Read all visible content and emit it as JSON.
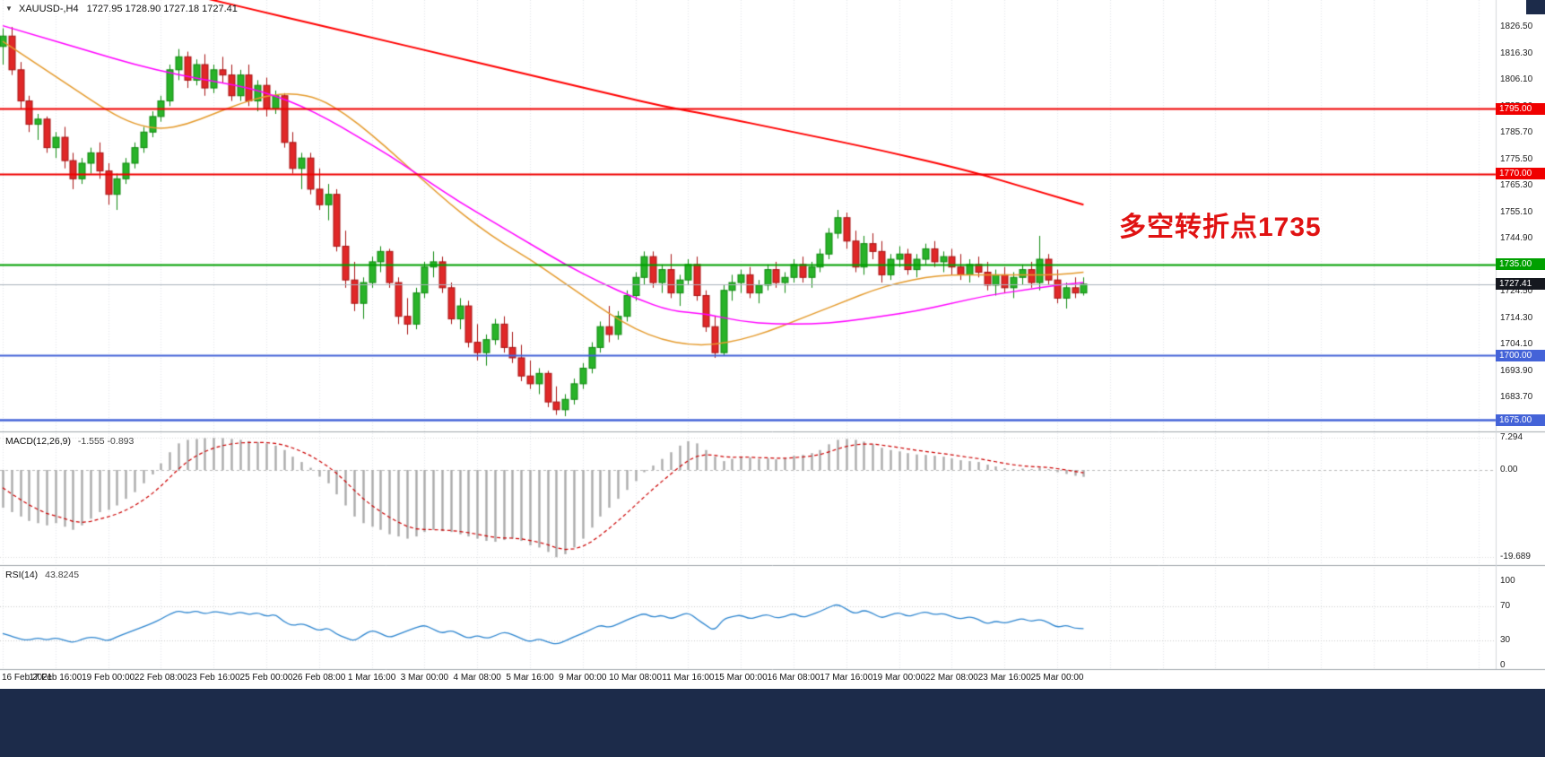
{
  "info_line": {
    "symbol_period": "XAUUSD-,H4",
    "ohlc_values": "1727.95 1728.90 1727.18 1727.41"
  },
  "annotation": {
    "text": "多空转折点1735"
  },
  "colors": {
    "bull": "#29b329",
    "bull_border": "#0f8a0f",
    "bear": "#e02828",
    "bear_border": "#a81414",
    "ma_fast": "#e59b2d",
    "ma_mid": "#ff00ff",
    "ma_slow": "#ff0000",
    "grid": "#e4e7ea",
    "level_red": "#f00000",
    "level_green": "#00a000",
    "level_blue": "#4463d8",
    "current_price_line": "#aab2bc",
    "current_price_box": "#15181f",
    "macd_hist": "#ababab",
    "macd_signal": "#cc0000",
    "rsi_line": "#2e86d0",
    "separator": "#a0a6ac",
    "annotation_red": "#e01212",
    "page_bg": "#1c2b4a"
  },
  "chart_data": {
    "type": "candlestick",
    "symbol": "XAUUSD-",
    "timeframe": "H4",
    "ohlc_display": {
      "open": "1727.95",
      "high": "1728.90",
      "low": "1727.18",
      "close": "1727.41"
    },
    "price_ticks": [
      "1826.50",
      "1816.30",
      "1806.10",
      "1795.90",
      "1785.70",
      "1775.50",
      "1765.30",
      "1755.10",
      "1744.90",
      "1734.70",
      "1724.50",
      "1714.30",
      "1704.10",
      "1693.90",
      "1683.70",
      "1673.50"
    ],
    "levels": [
      {
        "label": "1795.00",
        "value": 1795.0,
        "color_key": "level_red"
      },
      {
        "label": "1770.00",
        "value": 1770.0,
        "color_key": "level_red"
      },
      {
        "label": "1735.00",
        "value": 1735.0,
        "color_key": "level_green"
      },
      {
        "label": "1700.00",
        "value": 1700.0,
        "color_key": "level_blue"
      },
      {
        "label": "1675.00",
        "value": 1675.0,
        "color_key": "level_blue"
      }
    ],
    "current_price": {
      "label": "1727.41",
      "value": 1727.41
    },
    "time_labels": [
      "16 Feb 2021",
      "17 Feb 16:00",
      "19 Feb 00:00",
      "22 Feb 08:00",
      "23 Feb 16:00",
      "25 Feb 00:00",
      "26 Feb 08:00",
      "1 Mar 16:00",
      "3 Mar 00:00",
      "4 Mar 08:00",
      "5 Mar 16:00",
      "9 Mar 00:00",
      "10 Mar 08:00",
      "11 Mar 16:00",
      "15 Mar 00:00",
      "16 Mar 08:00",
      "17 Mar 16:00",
      "19 Mar 00:00",
      "22 Mar 08:00",
      "23 Mar 16:00",
      "25 Mar 00:00"
    ],
    "candles": [
      [
        1819,
        1826,
        1812,
        1823
      ],
      [
        1823,
        1826.5,
        1808,
        1810
      ],
      [
        1810,
        1813,
        1795,
        1798
      ],
      [
        1798,
        1800,
        1786,
        1789
      ],
      [
        1789,
        1793,
        1783,
        1791
      ],
      [
        1791,
        1792,
        1778,
        1780
      ],
      [
        1780,
        1786,
        1776,
        1784
      ],
      [
        1784,
        1788,
        1772,
        1775
      ],
      [
        1775,
        1778,
        1764,
        1768
      ],
      [
        1768,
        1776,
        1766,
        1774
      ],
      [
        1774,
        1780,
        1770,
        1778
      ],
      [
        1778,
        1782,
        1768,
        1771
      ],
      [
        1771,
        1774,
        1758,
        1762
      ],
      [
        1762,
        1770,
        1756,
        1768
      ],
      [
        1768,
        1776,
        1766,
        1774
      ],
      [
        1774,
        1782,
        1772,
        1780
      ],
      [
        1780,
        1788,
        1778,
        1786
      ],
      [
        1786,
        1794,
        1784,
        1792
      ],
      [
        1792,
        1800,
        1790,
        1798
      ],
      [
        1798,
        1812,
        1796,
        1810
      ],
      [
        1810,
        1818,
        1806,
        1815
      ],
      [
        1815,
        1817,
        1803,
        1806
      ],
      [
        1806,
        1814,
        1804,
        1812
      ],
      [
        1812,
        1816,
        1800,
        1803
      ],
      [
        1803,
        1812,
        1801,
        1810
      ],
      [
        1810,
        1815,
        1805,
        1808
      ],
      [
        1808,
        1812,
        1798,
        1800
      ],
      [
        1800,
        1810,
        1798,
        1808
      ],
      [
        1808,
        1812,
        1796,
        1798
      ],
      [
        1798,
        1806,
        1794,
        1804
      ],
      [
        1804,
        1807,
        1792,
        1795
      ],
      [
        1795,
        1802,
        1793,
        1800
      ],
      [
        1800,
        1801,
        1780,
        1782
      ],
      [
        1782,
        1786,
        1770,
        1772
      ],
      [
        1772,
        1778,
        1764,
        1776
      ],
      [
        1776,
        1778,
        1762,
        1764
      ],
      [
        1764,
        1772,
        1756,
        1758
      ],
      [
        1758,
        1766,
        1752,
        1762
      ],
      [
        1762,
        1764,
        1740,
        1742
      ],
      [
        1742,
        1748,
        1726,
        1729
      ],
      [
        1729,
        1736,
        1717,
        1720
      ],
      [
        1720,
        1730,
        1714,
        1728
      ],
      [
        1728,
        1738,
        1726,
        1736
      ],
      [
        1736,
        1742,
        1732,
        1740
      ],
      [
        1740,
        1741,
        1726,
        1728
      ],
      [
        1728,
        1730,
        1712,
        1715
      ],
      [
        1715,
        1722,
        1708,
        1712
      ],
      [
        1712,
        1726,
        1710,
        1724
      ],
      [
        1724,
        1736,
        1722,
        1734
      ],
      [
        1734,
        1740,
        1730,
        1736
      ],
      [
        1736,
        1738,
        1724,
        1726
      ],
      [
        1726,
        1728,
        1712,
        1714
      ],
      [
        1714,
        1722,
        1710,
        1719
      ],
      [
        1719,
        1721,
        1703,
        1705
      ],
      [
        1705,
        1712,
        1698,
        1701
      ],
      [
        1701,
        1708,
        1696,
        1706
      ],
      [
        1706,
        1714,
        1704,
        1712
      ],
      [
        1712,
        1715,
        1701,
        1703
      ],
      [
        1703,
        1709,
        1697,
        1699
      ],
      [
        1699,
        1704,
        1690,
        1692
      ],
      [
        1692,
        1698,
        1687,
        1689
      ],
      [
        1689,
        1695,
        1685,
        1693
      ],
      [
        1693,
        1694,
        1680,
        1682
      ],
      [
        1682,
        1688,
        1677,
        1679
      ],
      [
        1679,
        1685,
        1676.5,
        1683
      ],
      [
        1683,
        1691,
        1681,
        1689
      ],
      [
        1689,
        1697,
        1687,
        1695
      ],
      [
        1695,
        1705,
        1693,
        1703
      ],
      [
        1703,
        1713,
        1701,
        1711
      ],
      [
        1711,
        1719,
        1705,
        1708
      ],
      [
        1708,
        1717,
        1706,
        1715
      ],
      [
        1715,
        1725,
        1713,
        1723
      ],
      [
        1723,
        1732,
        1721,
        1730
      ],
      [
        1730,
        1740,
        1727,
        1738
      ],
      [
        1738,
        1740,
        1726,
        1728
      ],
      [
        1728,
        1735,
        1724,
        1733
      ],
      [
        1733,
        1739,
        1722,
        1724
      ],
      [
        1724,
        1731,
        1719,
        1729
      ],
      [
        1729,
        1737,
        1727,
        1735
      ],
      [
        1735,
        1738,
        1721,
        1723
      ],
      [
        1723,
        1725,
        1709,
        1711
      ],
      [
        1711,
        1715,
        1699,
        1701
      ],
      [
        1701,
        1727,
        1700,
        1725
      ],
      [
        1725,
        1731,
        1721,
        1728
      ],
      [
        1728,
        1733,
        1724,
        1731
      ],
      [
        1731,
        1734,
        1722,
        1724
      ],
      [
        1724,
        1729,
        1720,
        1727
      ],
      [
        1727,
        1735,
        1725,
        1733
      ],
      [
        1733,
        1736,
        1726,
        1728
      ],
      [
        1728,
        1732,
        1724,
        1730
      ],
      [
        1730,
        1737,
        1728,
        1735
      ],
      [
        1735,
        1738,
        1728,
        1730
      ],
      [
        1730,
        1736,
        1726,
        1734
      ],
      [
        1734,
        1741,
        1732,
        1739
      ],
      [
        1739,
        1749,
        1737,
        1747
      ],
      [
        1747,
        1756,
        1745,
        1753
      ],
      [
        1753,
        1755,
        1741,
        1744
      ],
      [
        1744,
        1748,
        1732,
        1734
      ],
      [
        1734,
        1746,
        1731,
        1743
      ],
      [
        1743,
        1747,
        1737,
        1740
      ],
      [
        1740,
        1744,
        1728,
        1731
      ],
      [
        1731,
        1739,
        1729,
        1737
      ],
      [
        1737,
        1742,
        1734,
        1739
      ],
      [
        1739,
        1741,
        1731,
        1733
      ],
      [
        1733,
        1739,
        1730,
        1737
      ],
      [
        1737,
        1743,
        1735,
        1741
      ],
      [
        1741,
        1744,
        1734,
        1736
      ],
      [
        1736,
        1740,
        1732,
        1738
      ],
      [
        1738,
        1741,
        1731,
        1734
      ],
      [
        1734,
        1739,
        1729,
        1731
      ],
      [
        1731,
        1737,
        1728,
        1735
      ],
      [
        1735,
        1738,
        1730,
        1732
      ],
      [
        1732,
        1736,
        1725,
        1727
      ],
      [
        1727,
        1733,
        1723,
        1731
      ],
      [
        1731,
        1734,
        1724,
        1726
      ],
      [
        1726,
        1732,
        1722,
        1730
      ],
      [
        1730,
        1735,
        1727,
        1733
      ],
      [
        1733,
        1736,
        1726,
        1728
      ],
      [
        1728,
        1746,
        1725,
        1737
      ],
      [
        1737,
        1739,
        1727,
        1729
      ],
      [
        1729,
        1733,
        1720,
        1722
      ],
      [
        1722,
        1728,
        1718,
        1726
      ],
      [
        1726,
        1730,
        1722,
        1724
      ],
      [
        1724,
        1730,
        1723,
        1727.4
      ]
    ],
    "ma_orange": [
      [
        0,
        1821
      ],
      [
        4,
        1812
      ],
      [
        8,
        1803
      ],
      [
        12,
        1794
      ],
      [
        15,
        1789
      ],
      [
        18,
        1787
      ],
      [
        21,
        1789
      ],
      [
        24,
        1793
      ],
      [
        27,
        1797
      ],
      [
        30,
        1800
      ],
      [
        33,
        1801
      ],
      [
        36,
        1799
      ],
      [
        39,
        1793
      ],
      [
        42,
        1785
      ],
      [
        45,
        1776
      ],
      [
        48,
        1767
      ],
      [
        51,
        1758
      ],
      [
        54,
        1750
      ],
      [
        57,
        1743
      ],
      [
        60,
        1737
      ],
      [
        63,
        1730
      ],
      [
        66,
        1723
      ],
      [
        69,
        1716
      ],
      [
        72,
        1710
      ],
      [
        75,
        1706
      ],
      [
        78,
        1704
      ],
      [
        81,
        1704
      ],
      [
        84,
        1706
      ],
      [
        87,
        1709
      ],
      [
        90,
        1713
      ],
      [
        93,
        1717
      ],
      [
        96,
        1721
      ],
      [
        99,
        1725
      ],
      [
        102,
        1728
      ],
      [
        105,
        1730
      ],
      [
        108,
        1731
      ],
      [
        111,
        1731
      ],
      [
        114,
        1731
      ],
      [
        117,
        1731
      ],
      [
        120,
        1731
      ],
      [
        123,
        1732
      ]
    ],
    "ma_magenta": [
      [
        0,
        1827
      ],
      [
        5,
        1822
      ],
      [
        10,
        1817
      ],
      [
        15,
        1812
      ],
      [
        20,
        1808
      ],
      [
        25,
        1805
      ],
      [
        28,
        1803
      ],
      [
        31,
        1800
      ],
      [
        34,
        1796
      ],
      [
        37,
        1791
      ],
      [
        40,
        1785
      ],
      [
        44,
        1777
      ],
      [
        48,
        1768
      ],
      [
        52,
        1759
      ],
      [
        56,
        1751
      ],
      [
        60,
        1743
      ],
      [
        64,
        1735
      ],
      [
        68,
        1728
      ],
      [
        72,
        1722
      ],
      [
        76,
        1717
      ],
      [
        80,
        1716
      ],
      [
        84,
        1713
      ],
      [
        88,
        1712
      ],
      [
        92,
        1712
      ],
      [
        96,
        1713
      ],
      [
        100,
        1715
      ],
      [
        104,
        1717
      ],
      [
        108,
        1720
      ],
      [
        112,
        1723
      ],
      [
        116,
        1725
      ],
      [
        120,
        1727
      ],
      [
        123,
        1728
      ]
    ],
    "ma_red": [
      [
        20,
        1840
      ],
      [
        25,
        1836
      ],
      [
        30,
        1832
      ],
      [
        35,
        1828
      ],
      [
        40,
        1824
      ],
      [
        50,
        1816
      ],
      [
        60,
        1808
      ],
      [
        70,
        1800
      ],
      [
        75,
        1796
      ],
      [
        80,
        1793
      ],
      [
        90,
        1786
      ],
      [
        100,
        1779
      ],
      [
        110,
        1771
      ],
      [
        115,
        1766
      ],
      [
        120,
        1761
      ],
      [
        123,
        1758
      ]
    ],
    "macd": {
      "label": "MACD(12,26,9)",
      "values_text": "-1.555 -0.893",
      "value_main": -1.555,
      "value_signal": -0.893,
      "scale_labels": [
        "7.294",
        "0.00",
        "-19.689"
      ],
      "scale_max": 7.294,
      "scale_min": -19.689,
      "histogram": [
        -8.5,
        -9.5,
        -10.5,
        -11.5,
        -12,
        -12.5,
        -12,
        -12.8,
        -13.5,
        -12.5,
        -11,
        -9.5,
        -9,
        -8,
        -6.5,
        -5,
        -3,
        -1,
        1.5,
        4,
        6,
        6.8,
        7,
        7.2,
        7.25,
        7.2,
        7,
        6.8,
        6.5,
        6.3,
        6,
        5.5,
        4.5,
        3,
        1.8,
        0.5,
        -1.5,
        -3,
        -5.5,
        -8,
        -10.5,
        -12,
        -12.8,
        -13.5,
        -14.5,
        -15,
        -15.5,
        -15,
        -14,
        -13.5,
        -13.8,
        -14,
        -14.5,
        -15,
        -15.5,
        -16,
        -16.2,
        -15.8,
        -15.5,
        -16,
        -17,
        -17.5,
        -18.5,
        -19.689,
        -19,
        -17.5,
        -15.5,
        -13,
        -10.5,
        -8.5,
        -6.5,
        -4.5,
        -2.5,
        -0.5,
        1,
        2.5,
        4,
        5.5,
        6.5,
        6,
        4.5,
        3,
        2,
        2.5,
        3,
        2.8,
        2.5,
        2.6,
        2.4,
        2.6,
        3.2,
        3.4,
        3.8,
        4.5,
        5.8,
        6.8,
        7,
        6.8,
        6.4,
        5.8,
        5,
        4.5,
        4.2,
        3.8,
        3.5,
        3.4,
        3.2,
        3,
        2.6,
        2.2,
        2,
        1.8,
        1.2,
        0.8,
        0.4,
        0.2,
        0.3,
        0.2,
        0.5,
        0.2,
        -0.5,
        -0.9,
        -1.3,
        -1.555
      ]
    },
    "rsi": {
      "label": "RSI(14)",
      "value_text": "43.8245",
      "value": 43.8245,
      "scale_labels": [
        "100",
        "70",
        "30",
        "0"
      ],
      "values": [
        38,
        35,
        31,
        30,
        33,
        30,
        33,
        30,
        27,
        31,
        34,
        32,
        29,
        34,
        38,
        42,
        46,
        50,
        55,
        61,
        65,
        62,
        65,
        61,
        64,
        63,
        60,
        64,
        60,
        63,
        58,
        61,
        52,
        47,
        50,
        46,
        41,
        45,
        37,
        33,
        29,
        36,
        42,
        38,
        33,
        37,
        41,
        45,
        48,
        43,
        38,
        42,
        37,
        32,
        36,
        32,
        35,
        40,
        37,
        32,
        28,
        32,
        28,
        25,
        29,
        34,
        38,
        43,
        48,
        45,
        49,
        54,
        58,
        62,
        57,
        60,
        55,
        59,
        63,
        55,
        48,
        41,
        55,
        58,
        60,
        55,
        58,
        61,
        56,
        58,
        62,
        57,
        60,
        64,
        69,
        73,
        67,
        61,
        66,
        62,
        56,
        60,
        63,
        58,
        61,
        64,
        60,
        62,
        58,
        55,
        58,
        55,
        49,
        53,
        50,
        53,
        56,
        52,
        55,
        51,
        45,
        48,
        44,
        43.82
      ]
    }
  }
}
